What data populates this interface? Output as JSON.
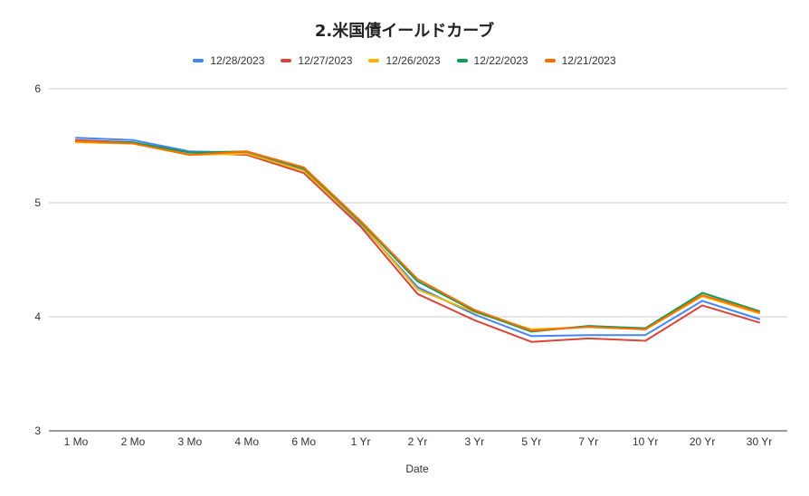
{
  "chart_data": {
    "type": "line",
    "title": "2.米国債イールドカーブ",
    "xlabel": "Date",
    "ylabel": "",
    "ylim": [
      3,
      6
    ],
    "yticks": [
      3,
      4,
      5,
      6
    ],
    "grid": true,
    "legend_position": "top",
    "categories": [
      "1 Mo",
      "2 Mo",
      "3 Mo",
      "4 Mo",
      "6 Mo",
      "1 Yr",
      "2 Yr",
      "3 Yr",
      "5 Yr",
      "7 Yr",
      "10 Yr",
      "20 Yr",
      "30 Yr"
    ],
    "series": [
      {
        "name": "12/28/2023",
        "color": "#4285f4",
        "values": [
          5.57,
          5.55,
          5.45,
          5.44,
          5.29,
          4.81,
          4.26,
          4.02,
          3.83,
          3.84,
          3.84,
          4.14,
          3.98
        ]
      },
      {
        "name": "12/27/2023",
        "color": "#db4437",
        "values": [
          5.55,
          5.53,
          5.44,
          5.42,
          5.26,
          4.79,
          4.2,
          3.97,
          3.78,
          3.81,
          3.79,
          4.1,
          3.95
        ]
      },
      {
        "name": "12/26/2023",
        "color": "#f4b400",
        "values": [
          5.53,
          5.52,
          5.42,
          5.43,
          5.28,
          4.82,
          4.24,
          4.04,
          3.89,
          3.91,
          3.89,
          4.18,
          4.03
        ]
      },
      {
        "name": "12/22/2023",
        "color": "#0f9d58",
        "values": [
          5.54,
          5.53,
          5.44,
          5.45,
          5.3,
          4.83,
          4.31,
          4.05,
          3.87,
          3.92,
          3.9,
          4.21,
          4.05
        ]
      },
      {
        "name": "12/21/2023",
        "color": "#ff6d01",
        "values": [
          5.54,
          5.52,
          5.42,
          5.45,
          5.31,
          4.84,
          4.33,
          4.06,
          3.88,
          3.91,
          3.89,
          4.19,
          4.04
        ]
      }
    ]
  }
}
